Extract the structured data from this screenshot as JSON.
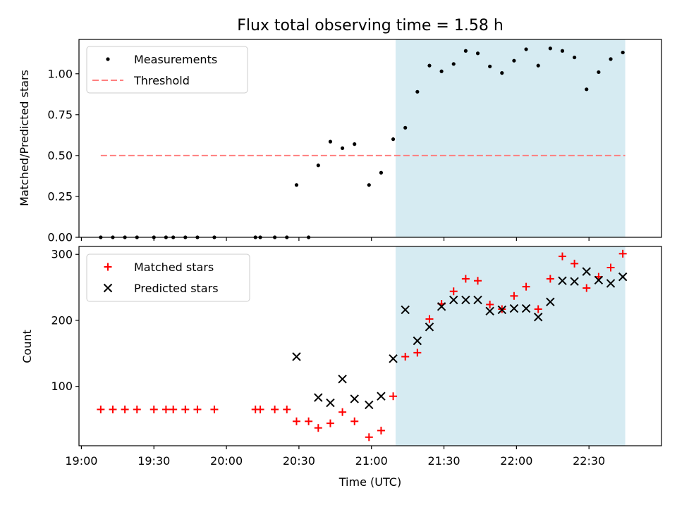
{
  "title": "Flux total observing time = 1.58 h",
  "colors": {
    "measurement": "#000000",
    "threshold": "#ff7f7f",
    "matched": "#ff0000",
    "predicted": "#000000",
    "highlight": "#add8e6"
  },
  "chart_data": [
    {
      "type": "scatter",
      "ylabel": "Matched/Predicted stars",
      "ylim": [
        0,
        1.21
      ],
      "yticks": [
        0.0,
        0.25,
        0.5,
        0.75,
        1.0
      ],
      "ytick_labels": [
        "0.00",
        "0.25",
        "0.50",
        "0.75",
        "1.00"
      ],
      "grid": false,
      "legend": {
        "placement": "top-left",
        "entries": [
          "Measurements",
          "Threshold"
        ]
      },
      "highlight_span": [
        "21:10",
        "22:45"
      ],
      "threshold": {
        "name": "Threshold",
        "value": 0.5,
        "x_range": [
          "19:08",
          "22:45"
        ]
      },
      "series": [
        {
          "name": "Measurements",
          "points": [
            [
              "19:08",
              0
            ],
            [
              "19:13",
              0
            ],
            [
              "19:18",
              0
            ],
            [
              "19:23",
              0
            ],
            [
              "19:30",
              0
            ],
            [
              "19:35",
              0
            ],
            [
              "19:38",
              0
            ],
            [
              "19:43",
              0
            ],
            [
              "19:48",
              0
            ],
            [
              "19:55",
              0
            ],
            [
              "20:12",
              0
            ],
            [
              "20:14",
              0
            ],
            [
              "20:20",
              0
            ],
            [
              "20:25",
              0
            ],
            [
              "20:29",
              0.32
            ],
            [
              "20:34",
              0
            ],
            [
              "20:38",
              0.44
            ],
            [
              "20:43",
              0.585
            ],
            [
              "20:48",
              0.545
            ],
            [
              "20:53",
              0.57
            ],
            [
              "20:59",
              0.32
            ],
            [
              "21:04",
              0.395
            ],
            [
              "21:09",
              0.6
            ],
            [
              "21:14",
              0.67
            ],
            [
              "21:19",
              0.89
            ],
            [
              "21:24",
              1.05
            ],
            [
              "21:29",
              1.015
            ],
            [
              "21:34",
              1.06
            ],
            [
              "21:39",
              1.14
            ],
            [
              "21:44",
              1.125
            ],
            [
              "21:49",
              1.045
            ],
            [
              "21:54",
              1.005
            ],
            [
              "21:59",
              1.08
            ],
            [
              "22:04",
              1.15
            ],
            [
              "22:09",
              1.05
            ],
            [
              "22:14",
              1.155
            ],
            [
              "22:19",
              1.14
            ],
            [
              "22:24",
              1.1
            ],
            [
              "22:29",
              0.905
            ],
            [
              "22:34",
              1.01
            ],
            [
              "22:39",
              1.09
            ],
            [
              "22:44",
              1.13
            ]
          ]
        }
      ]
    },
    {
      "type": "scatter",
      "xlabel": "Time (UTC)",
      "ylabel": "Count",
      "ylim": [
        10,
        312
      ],
      "yticks": [
        100,
        200,
        300
      ],
      "xlim": [
        "18:59",
        "23:00"
      ],
      "xticks": [
        "19:00",
        "19:30",
        "20:00",
        "20:30",
        "21:00",
        "21:30",
        "22:00",
        "22:30"
      ],
      "grid": false,
      "legend": {
        "placement": "top-left",
        "entries": [
          "Matched stars",
          "Predicted stars"
        ]
      },
      "highlight_span": [
        "21:10",
        "22:45"
      ],
      "series": [
        {
          "name": "Matched stars",
          "marker": "plus",
          "points": [
            [
              "19:08",
              65
            ],
            [
              "19:13",
              65
            ],
            [
              "19:18",
              65
            ],
            [
              "19:23",
              65
            ],
            [
              "19:30",
              65
            ],
            [
              "19:35",
              65
            ],
            [
              "19:38",
              65
            ],
            [
              "19:43",
              65
            ],
            [
              "19:48",
              65
            ],
            [
              "19:55",
              65
            ],
            [
              "20:12",
              65
            ],
            [
              "20:14",
              65
            ],
            [
              "20:20",
              65
            ],
            [
              "20:25",
              65
            ],
            [
              "20:29",
              47
            ],
            [
              "20:34",
              47
            ],
            [
              "20:38",
              37
            ],
            [
              "20:43",
              44
            ],
            [
              "20:48",
              61
            ],
            [
              "20:53",
              47
            ],
            [
              "20:59",
              23
            ],
            [
              "21:04",
              33
            ],
            [
              "21:09",
              85
            ],
            [
              "21:14",
              145
            ],
            [
              "21:19",
              151
            ],
            [
              "21:24",
              202
            ],
            [
              "21:29",
              225
            ],
            [
              "21:34",
              244
            ],
            [
              "21:39",
              263
            ],
            [
              "21:44",
              260
            ],
            [
              "21:49",
              224
            ],
            [
              "21:54",
              217
            ],
            [
              "21:59",
              237
            ],
            [
              "22:04",
              251
            ],
            [
              "22:09",
              217
            ],
            [
              "22:14",
              263
            ],
            [
              "22:19",
              297
            ],
            [
              "22:24",
              286
            ],
            [
              "22:29",
              249
            ],
            [
              "22:34",
              266
            ],
            [
              "22:39",
              280
            ],
            [
              "22:44",
              301
            ]
          ]
        },
        {
          "name": "Predicted stars",
          "marker": "x",
          "points": [
            [
              "20:29",
              145
            ],
            [
              "20:38",
              83
            ],
            [
              "20:43",
              75
            ],
            [
              "20:48",
              111
            ],
            [
              "20:53",
              81
            ],
            [
              "20:59",
              72
            ],
            [
              "21:04",
              85
            ],
            [
              "21:09",
              142
            ],
            [
              "21:14",
              216
            ],
            [
              "21:19",
              169
            ],
            [
              "21:24",
              190
            ],
            [
              "21:29",
              221
            ],
            [
              "21:34",
              231
            ],
            [
              "21:39",
              231
            ],
            [
              "21:44",
              231
            ],
            [
              "21:49",
              214
            ],
            [
              "21:54",
              216
            ],
            [
              "21:59",
              218
            ],
            [
              "22:04",
              218
            ],
            [
              "22:09",
              205
            ],
            [
              "22:14",
              228
            ],
            [
              "22:19",
              260
            ],
            [
              "22:24",
              259
            ],
            [
              "22:29",
              274
            ],
            [
              "22:34",
              261
            ],
            [
              "22:39",
              256
            ],
            [
              "22:44",
              266
            ]
          ]
        }
      ]
    }
  ]
}
